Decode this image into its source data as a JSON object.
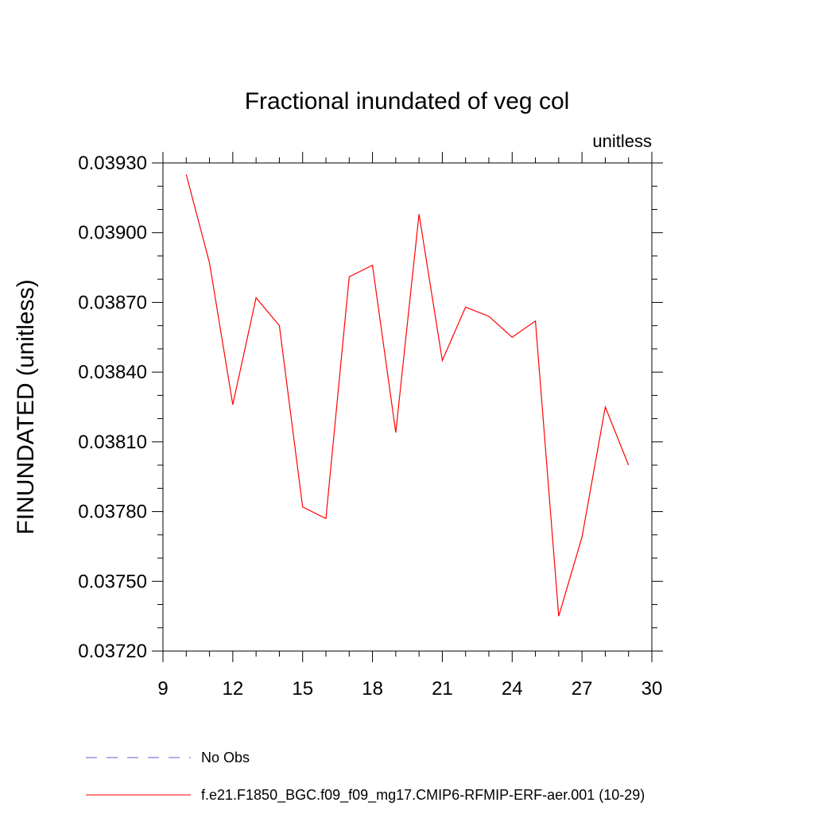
{
  "chart_data": {
    "type": "line",
    "title": "Fractional inundated of veg col",
    "units_label": "unitless",
    "ylabel": "FINUNDATED  (unitless)",
    "xlabel": "",
    "xlim": [
      9,
      30
    ],
    "ylim": [
      0.0372,
      0.0393
    ],
    "x_ticks": [
      "9",
      "12",
      "15",
      "18",
      "21",
      "24",
      "27",
      "30"
    ],
    "y_ticks": [
      "0.03720",
      "0.03750",
      "0.03780",
      "0.03810",
      "0.03840",
      "0.03870",
      "0.03900",
      "0.03930"
    ],
    "grid": false,
    "legend_position": "bottom",
    "series": [
      {
        "name": "No Obs",
        "color": "#6a5acd",
        "dash": true,
        "x": [],
        "values": []
      },
      {
        "name": "f.e21.F1850_BGC.f09_f09_mg17.CMIP6-RFMIP-ERF-aer.001 (10-29)",
        "color": "#ff0000",
        "dash": false,
        "x": [
          10,
          11,
          12,
          13,
          14,
          15,
          16,
          17,
          18,
          19,
          20,
          21,
          22,
          23,
          24,
          25,
          26,
          27,
          28,
          29
        ],
        "values": [
          0.03925,
          0.03887,
          0.03826,
          0.03872,
          0.0386,
          0.03782,
          0.03777,
          0.03881,
          0.03886,
          0.03814,
          0.03908,
          0.03845,
          0.03868,
          0.03864,
          0.03855,
          0.03862,
          0.03735,
          0.03769,
          0.03825,
          0.038
        ]
      }
    ]
  }
}
